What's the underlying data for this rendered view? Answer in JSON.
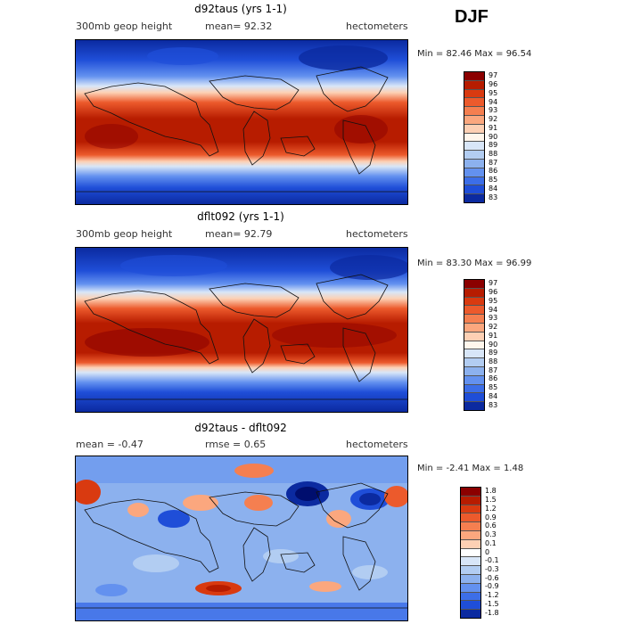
{
  "season": "DJF",
  "panels": [
    {
      "title": "d92taus (yrs 1-1)",
      "left_label": "300mb geop height",
      "mid_label": "mean=  92.32",
      "right_label": "hectometers",
      "minmax": "Min =  82.46 Max =  96.54",
      "colorbar": {
        "labels": [
          "97",
          "96",
          "95",
          "94",
          "93",
          "92",
          "91",
          "90",
          "89",
          "88",
          "87",
          "86",
          "85",
          "84",
          "83"
        ],
        "colors": [
          "#8b0000",
          "#b71c00",
          "#d93a10",
          "#ec5a2c",
          "#f57f50",
          "#fba77e",
          "#fdd0b4",
          "#fff6ec",
          "#d8e6f8",
          "#b2cdf2",
          "#8cb1ee",
          "#6391ef",
          "#3c6ee8",
          "#1f4ed8",
          "#0b2aa0"
        ]
      }
    },
    {
      "title": "dflt092 (yrs 1-1)",
      "left_label": "300mb geop height",
      "mid_label": "mean=  92.79",
      "right_label": "hectometers",
      "minmax": "Min =  83.30 Max =  96.99",
      "colorbar": {
        "labels": [
          "97",
          "96",
          "95",
          "94",
          "93",
          "92",
          "91",
          "90",
          "89",
          "88",
          "87",
          "86",
          "85",
          "84",
          "83"
        ],
        "colors": [
          "#8b0000",
          "#b71c00",
          "#d93a10",
          "#ec5a2c",
          "#f57f50",
          "#fba77e",
          "#fdd0b4",
          "#fff6ec",
          "#d8e6f8",
          "#b2cdf2",
          "#8cb1ee",
          "#6391ef",
          "#3c6ee8",
          "#1f4ed8",
          "#0b2aa0"
        ]
      }
    },
    {
      "title": "d92taus - dflt092",
      "left_label": "mean =   -0.47",
      "mid_label": "rmse =    0.65",
      "right_label": "hectometers",
      "minmax": "Min =  -2.41 Max =    1.48",
      "colorbar": {
        "labels": [
          "1.8",
          "1.5",
          "1.2",
          "0.9",
          "0.6",
          "0.3",
          "0.1",
          "0",
          "-0.1",
          "-0.3",
          "-0.6",
          "-0.9",
          "-1.2",
          "-1.5",
          "-1.8"
        ],
        "colors": [
          "#8b0000",
          "#b71c00",
          "#d93a10",
          "#ec5a2c",
          "#f57f50",
          "#fba77e",
          "#fdd0b4",
          "#ffffff",
          "#d8e6f8",
          "#b2cdf2",
          "#8cb1ee",
          "#6391ef",
          "#3c6ee8",
          "#1f4ed8",
          "#0b2aa0"
        ]
      }
    }
  ]
}
